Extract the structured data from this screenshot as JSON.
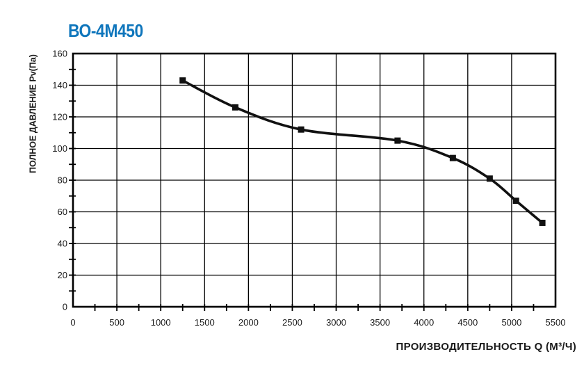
{
  "title": "ВО-4М450",
  "colors": {
    "title_blue": "#0f76bc",
    "curve": "#111111",
    "grid": "#000000",
    "axis": "#000000",
    "tick_text": "#1a1a1a",
    "background": "#ffffff"
  },
  "chart_data": {
    "type": "line",
    "title": "ВО-4М450",
    "xlabel": "ПРОИЗВОДИТЕЛЬНОСТЬ  Q  (М³/Ч)",
    "ylabel": "ПОЛНОЕ ДАВЛЕНИЕ  Pv(Па)",
    "xlim": [
      0,
      5500
    ],
    "ylim": [
      0,
      160
    ],
    "x_major_ticks": [
      0,
      500,
      1000,
      1500,
      2000,
      2500,
      3000,
      3500,
      4000,
      4500,
      5000,
      5500
    ],
    "x_minor_step": 250,
    "y_major_ticks": [
      0,
      20,
      40,
      60,
      80,
      100,
      120,
      140,
      160
    ],
    "y_minor_step": 10,
    "grid": "on",
    "legend": "none",
    "series": [
      {
        "name": "Pv",
        "marker": "square",
        "points": [
          [
            1250,
            143
          ],
          [
            1850,
            126
          ],
          [
            2600,
            112
          ],
          [
            3700,
            105
          ],
          [
            4330,
            94
          ],
          [
            4750,
            81
          ],
          [
            5050,
            67
          ],
          [
            5350,
            53
          ]
        ]
      }
    ]
  }
}
